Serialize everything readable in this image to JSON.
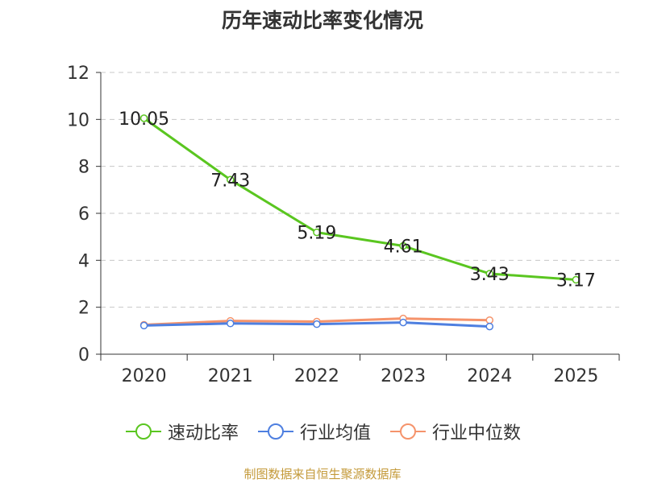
{
  "chart_data": {
    "type": "line",
    "title": "历年速动比率变化情况",
    "categories": [
      "2020",
      "2021",
      "2022",
      "2023",
      "2024",
      "2025"
    ],
    "ylim": [
      0,
      12
    ],
    "yticks": [
      0,
      2,
      4,
      6,
      8,
      10,
      12
    ],
    "grid": true,
    "legend_position": "bottom",
    "series": [
      {
        "name": "速动比率",
        "color": "#5ac620",
        "values": [
          10.05,
          7.43,
          5.19,
          4.61,
          3.43,
          3.17
        ],
        "labels": [
          "10.05",
          "7.43",
          "5.19",
          "4.61",
          "3.43",
          "3.17"
        ],
        "show_labels": true
      },
      {
        "name": "行业均值",
        "color": "#4e7fe0",
        "values": [
          1.22,
          1.31,
          1.28,
          1.35,
          1.18,
          null
        ],
        "show_labels": false
      },
      {
        "name": "行业中位数",
        "color": "#f5936b",
        "values": [
          1.25,
          1.42,
          1.39,
          1.52,
          1.45,
          null
        ],
        "show_labels": false
      }
    ]
  },
  "source": "制图数据来自恒生聚源数据库"
}
